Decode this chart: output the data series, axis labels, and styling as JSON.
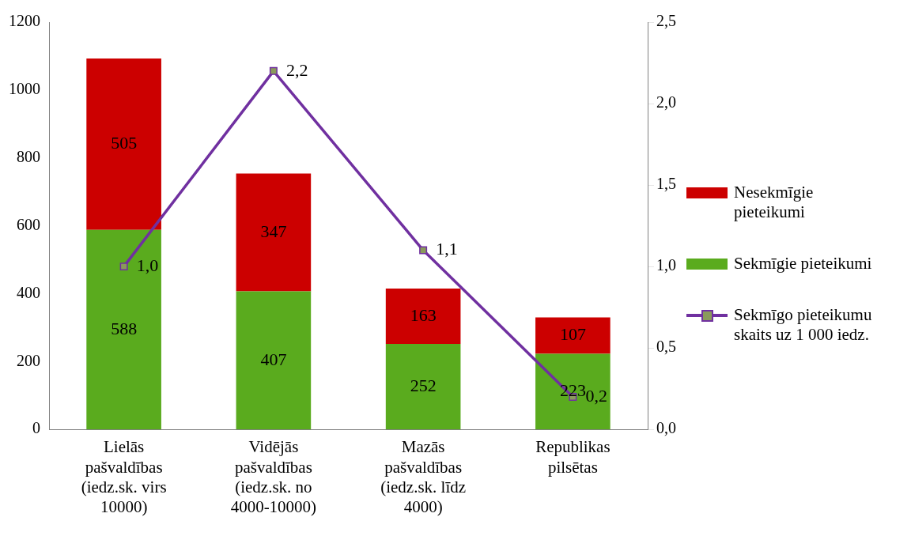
{
  "chart_data": {
    "type": "bar",
    "stacked": true,
    "categories": [
      "Lielās pašvaldības (iedz.sk. virs 10000)",
      "Vidējās pašvaldības (iedz.sk. no 4000-10000)",
      "Mazās pašvaldības (iedz.sk. līdz 4000)",
      "Republikas pilsētas"
    ],
    "series": [
      {
        "name": "Sekmīgie pieteikumi",
        "color": "#5aab1e",
        "values": [
          588,
          407,
          252,
          223
        ],
        "value_labels": [
          "588",
          "407",
          "252",
          "223"
        ]
      },
      {
        "name": "Nesekmīgie pieteikumi",
        "color": "#cc0000",
        "values": [
          505,
          347,
          163,
          107
        ],
        "value_labels": [
          "505",
          "347",
          "163",
          "107"
        ]
      },
      {
        "name": "Sekmīgo pieteikumu skaits uz 1 000 iedz.",
        "type": "line",
        "axis": "y2",
        "color": "#7030a0",
        "marker": "square",
        "values": [
          1.0,
          2.2,
          1.1,
          0.2
        ],
        "value_labels": [
          "1,0",
          "2,2",
          "1,1",
          "0,2"
        ]
      }
    ],
    "ylim": [
      0,
      1200
    ],
    "yticks": [
      0,
      200,
      400,
      600,
      800,
      1000,
      1200
    ],
    "y2lim": [
      0,
      2.5
    ],
    "y2ticks": [
      {
        "value": 0,
        "label": "0,0"
      },
      {
        "value": 0.5,
        "label": "0,5"
      },
      {
        "value": 1,
        "label": "1,0"
      },
      {
        "value": 1.5,
        "label": "1,5"
      },
      {
        "value": 2,
        "label": "2,0"
      },
      {
        "value": 2.5,
        "label": "2,5"
      }
    ],
    "grid": false,
    "legend": "right"
  }
}
